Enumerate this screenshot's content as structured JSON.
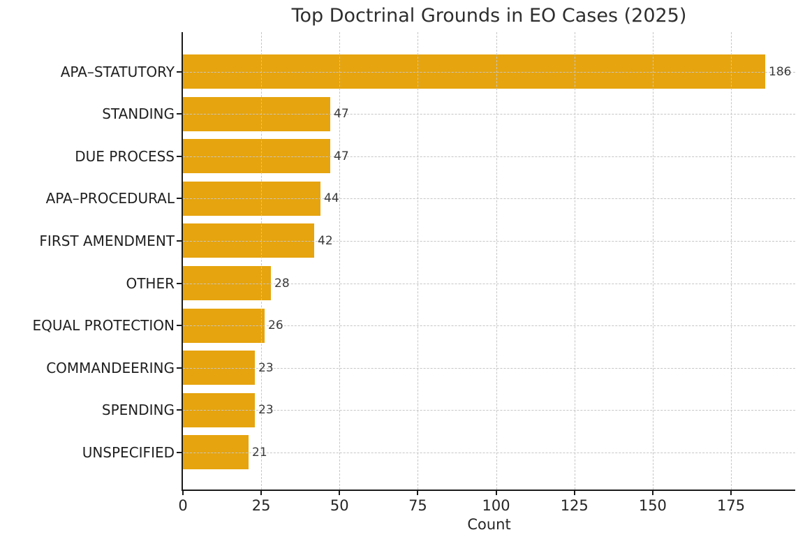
{
  "chart_data": {
    "type": "bar",
    "orientation": "horizontal",
    "title": "Top Doctrinal Grounds in EO Cases (2025)",
    "xlabel": "Count",
    "ylabel": "",
    "categories": [
      "APA–STATUTORY",
      "STANDING",
      "DUE PROCESS",
      "APA–PROCEDURAL",
      "FIRST AMENDMENT",
      "OTHER",
      "EQUAL PROTECTION",
      "COMMANDEERING",
      "SPENDING",
      "UNSPECIFIED"
    ],
    "values": [
      186,
      47,
      47,
      44,
      42,
      28,
      26,
      23,
      23,
      21
    ],
    "value_labels": [
      "186",
      "47",
      "47",
      "44",
      "42",
      "28",
      "26",
      "23",
      "23",
      "21"
    ],
    "xticks": [
      0,
      25,
      50,
      75,
      100,
      125,
      150,
      175
    ],
    "xlim": [
      0,
      195.5
    ],
    "grid": "dashed gridlines on both axes, drawn over the bars",
    "legend": "none",
    "colors": {
      "bar_fill": "#E6A40E",
      "grid_line": "#c6c6c6",
      "axis_spine": "#1a1a1a",
      "title_text": "#2e2e2e",
      "category_text": "#1f1f1f",
      "tick_text": "#262626",
      "value_label_text": "#3a3a3a",
      "background": "#ffffff"
    }
  }
}
